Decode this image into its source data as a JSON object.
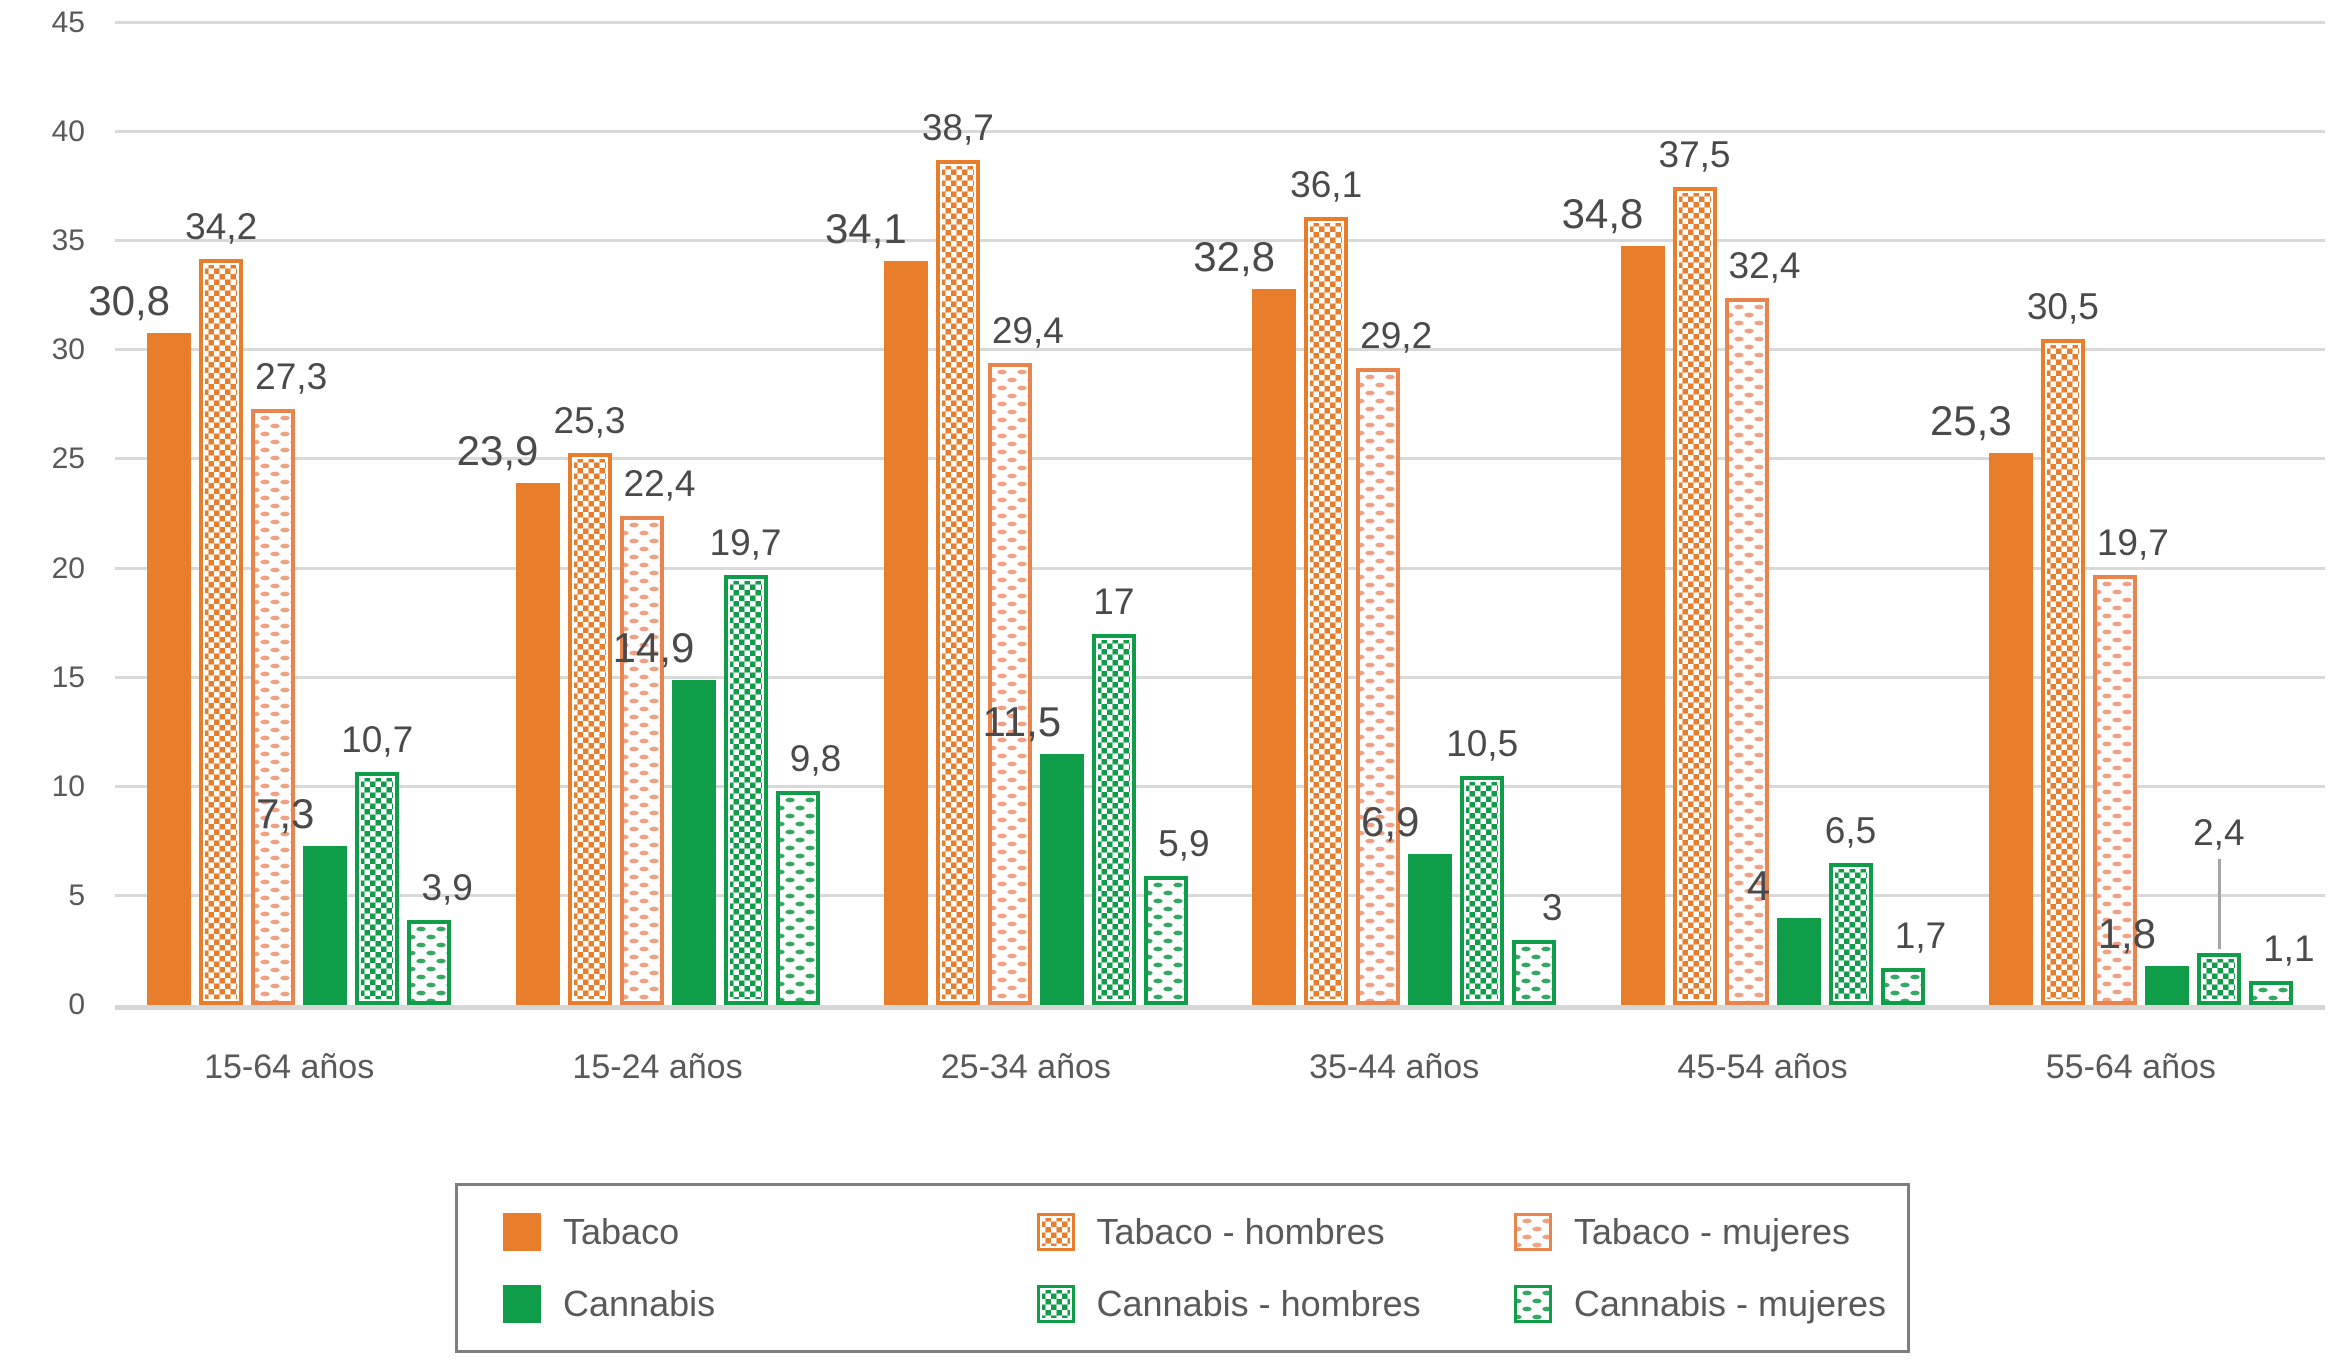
{
  "chart_data": {
    "type": "bar",
    "title": "",
    "categories": [
      "15-64 años",
      "15-24 años",
      "25-34 años",
      "35-44 años",
      "45-54 años",
      "55-64 años"
    ],
    "series": [
      {
        "name": "Tabaco",
        "values": [
          30.8,
          23.9,
          34.1,
          32.8,
          34.8,
          25.3
        ],
        "labels": [
          "30,8",
          "23,9",
          "34,1",
          "32,8",
          "34,8",
          "25,3"
        ],
        "color": "#E87D2B",
        "pattern": "solid"
      },
      {
        "name": "Tabaco - hombres",
        "values": [
          34.2,
          25.3,
          38.7,
          36.1,
          37.5,
          30.5
        ],
        "labels": [
          "34,2",
          "25,3",
          "38,7",
          "36,1",
          "37,5",
          "30,5"
        ],
        "color": "#E87D2B",
        "pattern": "checker"
      },
      {
        "name": "Tabaco - mujeres",
        "values": [
          27.3,
          22.4,
          29.4,
          29.2,
          32.4,
          19.7
        ],
        "labels": [
          "27,3",
          "22,4",
          "29,4",
          "29,2",
          "32,4",
          "19,7"
        ],
        "color": "#F1A183",
        "pattern": "waves"
      },
      {
        "name": "Cannabis",
        "values": [
          7.3,
          14.9,
          11.5,
          6.9,
          4,
          1.8
        ],
        "labels": [
          "7,3",
          "14,9",
          "11,5",
          "6,9",
          "4",
          "1,8"
        ],
        "color": "#0F9D49",
        "pattern": "solid"
      },
      {
        "name": "Cannabis - hombres",
        "values": [
          10.7,
          19.7,
          17,
          10.5,
          6.5,
          2.4
        ],
        "labels": [
          "10,7",
          "19,7",
          "17",
          "10,5",
          "6,5",
          "2,4"
        ],
        "color": "#0F9D49",
        "pattern": "checker"
      },
      {
        "name": "Cannabis - mujeres",
        "values": [
          3.9,
          9.8,
          5.9,
          3,
          1.7,
          1.1
        ],
        "labels": [
          "3,9",
          "9,8",
          "5,9",
          "3",
          "1,7",
          "1,1"
        ],
        "color": "#35A963",
        "pattern": "waves"
      }
    ],
    "y_ticks": [
      0,
      5,
      10,
      15,
      20,
      25,
      30,
      35,
      40,
      45
    ],
    "ylim": [
      0,
      45
    ],
    "grid": true,
    "legend_position": "bottom",
    "leader_lines": [
      {
        "series": 4,
        "category": 5
      }
    ]
  },
  "colors": {
    "orange": "#E87D2B",
    "orange_light": "#F1A183",
    "orange_border": "#E8854E",
    "green": "#0F9D49",
    "green_light": "#35A963",
    "data_label_text": "#4A4A4A",
    "axis_text": "#595959",
    "gridline": "#D9D9D9",
    "legend_border": "#7F7F7F",
    "leader_line": "#A6A6A6"
  },
  "legend": {
    "items": [
      {
        "label": "Tabaco"
      },
      {
        "label": "Tabaco - hombres"
      },
      {
        "label": "Tabaco - mujeres"
      },
      {
        "label": "Cannabis"
      },
      {
        "label": "Cannabis - hombres"
      },
      {
        "label": "Cannabis - mujeres"
      }
    ]
  }
}
